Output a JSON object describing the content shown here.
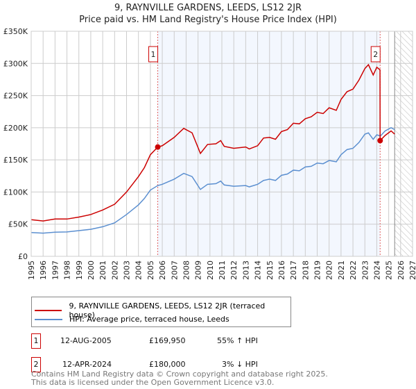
{
  "chart_data": {
    "type": "line",
    "title": "9, RAYNVILLE GARDENS, LEEDS, LS12 2JR",
    "subtitle": "Price paid vs. HM Land Registry's House Price Index (HPI)",
    "xlim": [
      1995,
      2027
    ],
    "ylim": [
      0,
      350000
    ],
    "yticks": [
      {
        "v": 0,
        "label": "£0"
      },
      {
        "v": 50000,
        "label": "£50K"
      },
      {
        "v": 100000,
        "label": "£100K"
      },
      {
        "v": 150000,
        "label": "£150K"
      },
      {
        "v": 200000,
        "label": "£200K"
      },
      {
        "v": 250000,
        "label": "£250K"
      },
      {
        "v": 300000,
        "label": "£300K"
      },
      {
        "v": 350000,
        "label": "£350K"
      }
    ],
    "xticks": [
      "1995",
      "1996",
      "1997",
      "1998",
      "1999",
      "2000",
      "2001",
      "2002",
      "2003",
      "2004",
      "2005",
      "2006",
      "2007",
      "2008",
      "2009",
      "2010",
      "2011",
      "2012",
      "2013",
      "2014",
      "2015",
      "2016",
      "2017",
      "2018",
      "2019",
      "2020",
      "2021",
      "2022",
      "2023",
      "2024",
      "2025",
      "2026",
      "2027"
    ],
    "grid": true,
    "shaded_range": [
      2005.62,
      2024.28
    ],
    "forecast_from": 2025.5,
    "series": [
      {
        "name": "9, RAYNVILLE GARDENS, LEEDS, LS12 2JR (terraced house)",
        "color": "#cc0000",
        "x": [
          1995,
          1996,
          1997,
          1998,
          1999,
          2000,
          2001,
          2002,
          2003,
          2004,
          2004.5,
          2005,
          2005.62,
          2006,
          2007,
          2007.8,
          2008.5,
          2009.2,
          2009.8,
          2010.5,
          2010.9,
          2011.2,
          2012,
          2013,
          2013.3,
          2014,
          2014.5,
          2015,
          2015.5,
          2016,
          2016.5,
          2017,
          2017.5,
          2018,
          2018.5,
          2019,
          2019.5,
          2020,
          2020.6,
          2021,
          2021.5,
          2022,
          2022.5,
          2023,
          2023.3,
          2023.7,
          2024,
          2024.27,
          2024.28,
          2024.7,
          2025.2,
          2025.5
        ],
        "y": [
          57000,
          55000,
          58000,
          58000,
          61000,
          65000,
          72000,
          81000,
          100000,
          124000,
          138000,
          158000,
          169950,
          172000,
          185000,
          199000,
          192000,
          160000,
          174000,
          175000,
          180000,
          171000,
          168000,
          170000,
          167000,
          172000,
          184000,
          185000,
          182000,
          194000,
          197000,
          207000,
          206000,
          214000,
          217000,
          224000,
          222000,
          231000,
          227000,
          244000,
          256000,
          260000,
          274000,
          292000,
          298000,
          282000,
          294000,
          290000,
          180000,
          188000,
          195000,
          190000
        ]
      },
      {
        "name": "HPI: Average price, terraced house, Leeds",
        "color": "#5b8fd0",
        "x": [
          1995,
          1996,
          1997,
          1998,
          1999,
          2000,
          2001,
          2002,
          2003,
          2004,
          2004.5,
          2005,
          2005.62,
          2006,
          2007,
          2007.8,
          2008.5,
          2009.2,
          2009.8,
          2010.5,
          2010.9,
          2011.2,
          2012,
          2013,
          2013.3,
          2014,
          2014.5,
          2015,
          2015.5,
          2016,
          2016.5,
          2017,
          2017.5,
          2018,
          2018.5,
          2019,
          2019.5,
          2020,
          2020.6,
          2021,
          2021.5,
          2022,
          2022.5,
          2023,
          2023.3,
          2023.7,
          2024,
          2024.3,
          2024.7,
          2025.2,
          2025.5
        ],
        "y": [
          37000,
          36000,
          37500,
          38000,
          40000,
          42000,
          46000,
          52000,
          65000,
          80000,
          90000,
          103000,
          110000,
          112000,
          120000,
          129000,
          124000,
          104000,
          112000,
          113000,
          117000,
          111000,
          109000,
          110000,
          108000,
          112000,
          118000,
          120000,
          118000,
          126000,
          128000,
          134000,
          133000,
          139000,
          140000,
          145000,
          144000,
          149000,
          147000,
          158000,
          166000,
          168000,
          177000,
          190000,
          192000,
          182000,
          189000,
          187000,
          195000,
          200000,
          197000
        ]
      }
    ],
    "annotations": [
      {
        "label": "1",
        "x": 2005.62,
        "y": 169950
      },
      {
        "label": "2",
        "x": 2024.28,
        "y": 180000
      }
    ]
  },
  "legend": {
    "items": [
      "9, RAYNVILLE GARDENS, LEEDS, LS12 2JR (terraced house)",
      "HPI: Average price, terraced house, Leeds"
    ]
  },
  "sales": [
    {
      "num": "1",
      "date": "12-AUG-2005",
      "price": "£169,950",
      "hpi": "55% ↑ HPI"
    },
    {
      "num": "2",
      "date": "12-APR-2024",
      "price": "£180,000",
      "hpi": "3% ↓ HPI"
    }
  ],
  "footer": {
    "line1": "Contains HM Land Registry data © Crown copyright and database right 2025.",
    "line2": "This data is licensed under the Open Government Licence v3.0."
  }
}
